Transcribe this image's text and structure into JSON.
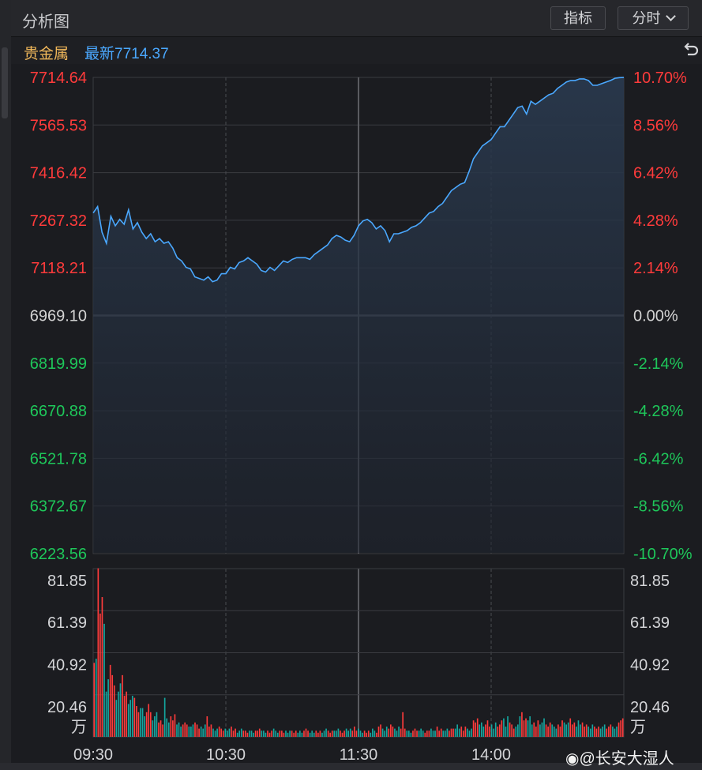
{
  "header": {
    "title": "分析图",
    "indicator_label": "指标",
    "period_label": "分时"
  },
  "subheader": {
    "category": "贵金属",
    "latest_label": "最新7714.37"
  },
  "watermark": "@长安大湿人",
  "colors": {
    "up": "#ff3b3b",
    "down": "#1ec75a",
    "neutral": "#d4d4d4",
    "line": "#4aa8ff",
    "background": "#1b1c20",
    "grid": "#3a3b40"
  },
  "chart_data": {
    "type": "line",
    "title": "贵金属",
    "x_ticks": [
      "09:30",
      "10:30",
      "11:30",
      "14:00"
    ],
    "ylim": [
      6223.56,
      7714.64
    ],
    "prev_close": 6969.1,
    "y_ticks_left": [
      "7714.64",
      "7565.53",
      "7416.42",
      "7267.32",
      "7118.21",
      "6969.10",
      "6819.99",
      "6670.88",
      "6521.78",
      "6372.67",
      "6223.56"
    ],
    "y_ticks_right": [
      "10.70%",
      "8.56%",
      "6.42%",
      "4.28%",
      "2.14%",
      "0.00%",
      "-2.14%",
      "-4.28%",
      "-6.42%",
      "-8.56%",
      "-10.70%"
    ],
    "series": [
      {
        "name": "price",
        "x": [
          0,
          2,
          4,
          6,
          8,
          10,
          12,
          14,
          16,
          18,
          20,
          22,
          24,
          26,
          28,
          30,
          32,
          34,
          36,
          38,
          40,
          42,
          44,
          46,
          48,
          50,
          52,
          54,
          56,
          58,
          60,
          62,
          64,
          66,
          68,
          70,
          72,
          74,
          76,
          78,
          80,
          82,
          84,
          86,
          88,
          90,
          92,
          94,
          96,
          98,
          100,
          102,
          104,
          106,
          108,
          110,
          112,
          114,
          116,
          118,
          120,
          122,
          124,
          126,
          128,
          130,
          132,
          134,
          136,
          138,
          140,
          142,
          144,
          146,
          148,
          150,
          152,
          154,
          156,
          158,
          160,
          162,
          164,
          166,
          168,
          170,
          172,
          174,
          176,
          178,
          180,
          182,
          184,
          186,
          188,
          190,
          192,
          194,
          196,
          198,
          200,
          202,
          204,
          206,
          208,
          210,
          212,
          214,
          216,
          218,
          220,
          222,
          224,
          226,
          228,
          230,
          232,
          234,
          236,
          238,
          240
        ],
        "values": [
          7290,
          7310,
          7230,
          7195,
          7280,
          7250,
          7270,
          7255,
          7300,
          7240,
          7260,
          7230,
          7210,
          7225,
          7200,
          7210,
          7195,
          7200,
          7180,
          7150,
          7140,
          7120,
          7115,
          7090,
          7085,
          7080,
          7090,
          7075,
          7080,
          7100,
          7100,
          7120,
          7115,
          7135,
          7140,
          7150,
          7140,
          7130,
          7110,
          7105,
          7120,
          7110,
          7125,
          7140,
          7135,
          7145,
          7150,
          7150,
          7150,
          7145,
          7160,
          7170,
          7180,
          7190,
          7210,
          7220,
          7215,
          7205,
          7200,
          7220,
          7250,
          7265,
          7270,
          7260,
          7240,
          7250,
          7235,
          7200,
          7225,
          7225,
          7230,
          7235,
          7245,
          7250,
          7260,
          7275,
          7290,
          7295,
          7310,
          7320,
          7340,
          7360,
          7370,
          7380,
          7385,
          7420,
          7460,
          7480,
          7500,
          7510,
          7520,
          7540,
          7560,
          7560,
          7580,
          7600,
          7620,
          7625,
          7600,
          7640,
          7630,
          7640,
          7650,
          7660,
          7665,
          7680,
          7690,
          7700,
          7705,
          7705,
          7710,
          7710,
          7705,
          7690,
          7690,
          7695,
          7700,
          7705,
          7712,
          7714,
          7714.37
        ]
      }
    ],
    "volume": {
      "unit": "万",
      "ylim": [
        0,
        81.85
      ],
      "y_ticks": [
        "81.85",
        "61.39",
        "40.92",
        "20.46"
      ],
      "values": [
        36,
        38,
        82,
        60,
        68,
        55,
        22,
        28,
        35,
        30,
        25,
        18,
        22,
        26,
        30,
        20,
        22,
        16,
        18,
        20,
        19,
        15,
        12,
        14,
        14,
        10,
        12,
        16,
        12,
        8,
        10,
        12,
        7,
        8,
        6,
        19,
        9,
        7,
        10,
        8,
        11,
        6,
        7,
        5,
        6,
        7,
        6,
        5,
        5,
        6,
        7,
        6,
        4,
        5,
        4,
        6,
        10,
        5,
        6,
        4,
        3,
        4,
        5,
        4,
        3,
        4,
        3,
        4,
        5,
        3,
        4,
        2,
        3,
        4,
        3,
        3,
        2,
        3,
        3,
        2,
        3,
        3,
        4,
        3,
        3,
        2,
        3,
        2,
        3,
        4,
        3,
        2,
        3,
        3,
        2,
        3,
        2,
        3,
        3,
        2,
        3,
        2,
        3,
        2,
        3,
        4,
        3,
        2,
        3,
        2,
        3,
        2,
        3,
        2,
        3,
        4,
        3,
        2,
        3,
        3,
        3,
        4,
        3,
        2,
        3,
        4,
        3,
        4,
        3,
        5,
        3,
        4,
        3,
        2,
        3,
        2,
        3,
        2,
        4,
        3,
        2,
        5,
        6,
        4,
        3,
        5,
        4,
        6,
        5,
        4,
        3,
        5,
        4,
        12,
        4,
        3,
        3,
        2,
        3,
        4,
        3,
        3,
        4,
        3,
        2,
        3,
        3,
        4,
        3,
        3,
        5,
        3,
        4,
        3,
        3,
        4,
        3,
        4,
        4,
        4,
        6,
        4,
        5,
        3,
        5,
        4,
        3,
        4,
        8,
        7,
        9,
        6,
        7,
        5,
        6,
        8,
        5,
        6,
        4,
        7,
        5,
        6,
        8,
        9,
        5,
        10,
        7,
        6,
        4,
        5,
        6,
        10,
        12,
        8,
        9,
        8,
        10,
        6,
        7,
        5,
        8,
        6,
        7,
        9,
        6,
        5,
        7,
        6,
        5,
        4,
        6,
        5,
        8,
        7,
        6,
        7,
        9,
        6,
        7,
        5,
        8,
        6,
        7,
        5,
        6,
        5,
        4,
        6,
        5,
        4,
        5,
        4,
        5,
        6,
        4,
        5,
        6,
        5,
        4,
        5,
        7,
        8,
        9
      ]
    }
  }
}
